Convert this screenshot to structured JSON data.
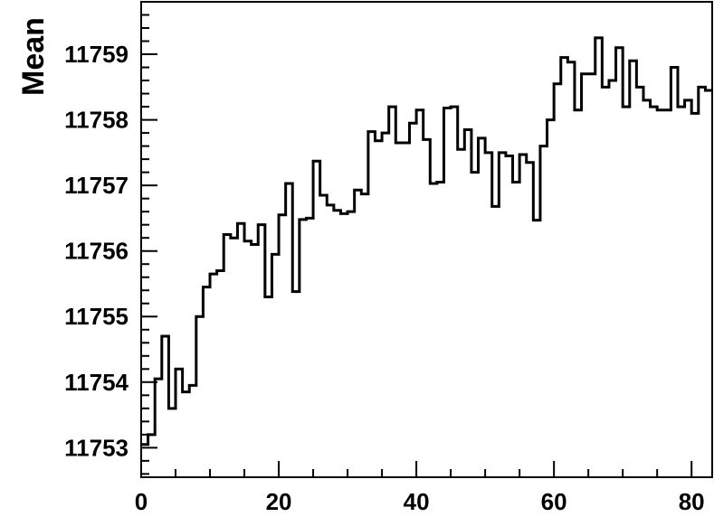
{
  "chart_data": {
    "type": "histogram-step",
    "title": "",
    "xlabel": "",
    "ylabel": "Mean",
    "xlim": [
      0,
      83
    ],
    "ylim": [
      11752.55,
      11759.8
    ],
    "x_ticks": [
      0,
      20,
      40,
      60,
      80
    ],
    "y_ticks": [
      11753,
      11754,
      11755,
      11756,
      11757,
      11758,
      11759
    ],
    "bin_width": 1,
    "grid": false,
    "legend": "none",
    "line_color": "#000000",
    "values": [
      11753.05,
      11753.2,
      11754.05,
      11754.7,
      11753.6,
      11754.2,
      11753.85,
      11753.95,
      11755.0,
      11755.45,
      11755.65,
      11755.7,
      11756.25,
      11756.2,
      11756.42,
      11756.15,
      11756.1,
      11756.4,
      11755.3,
      11755.95,
      11756.55,
      11757.03,
      11755.38,
      11756.48,
      11756.5,
      11757.37,
      11756.85,
      11756.7,
      11756.62,
      11756.57,
      11756.6,
      11756.93,
      11756.87,
      11757.82,
      11757.68,
      11757.8,
      11758.2,
      11757.65,
      11757.65,
      11757.95,
      11758.15,
      11757.7,
      11757.03,
      11757.05,
      11758.18,
      11758.2,
      11757.55,
      11757.85,
      11757.2,
      11757.72,
      11757.5,
      11756.68,
      11757.5,
      11757.45,
      11757.05,
      11757.47,
      11757.35,
      11756.47,
      11757.6,
      11758.0,
      11758.55,
      11758.95,
      11758.88,
      11758.15,
      11758.7,
      11758.7,
      11759.25,
      11758.5,
      11758.6,
      11759.1,
      11758.2,
      11758.9,
      11758.5,
      11758.3,
      11758.2,
      11758.15,
      11758.15,
      11758.8,
      11758.2,
      11758.3,
      11758.1,
      11758.5,
      11758.45
    ]
  }
}
